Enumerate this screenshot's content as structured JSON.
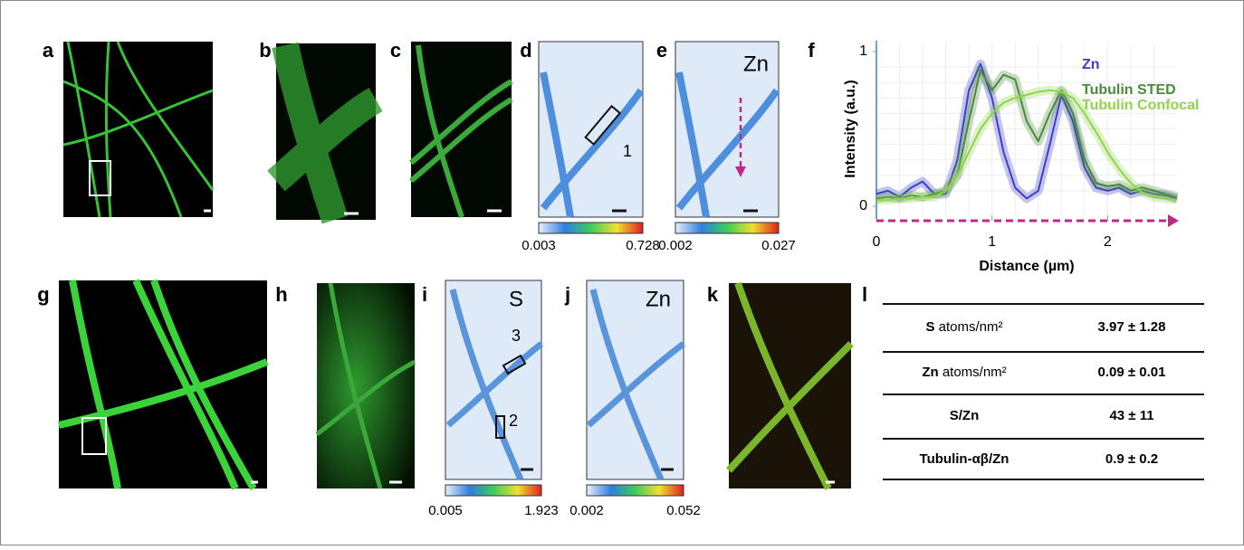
{
  "panel_labels": [
    "a",
    "b",
    "c",
    "d",
    "e",
    "f",
    "g",
    "h",
    "i",
    "j",
    "k",
    "l"
  ],
  "panel_d": {
    "region": "1",
    "colorbar": {
      "min": "0.003",
      "max": "0.728"
    }
  },
  "panel_e": {
    "element": "Zn",
    "colorbar": {
      "min": "0.002",
      "max": "0.027"
    }
  },
  "panel_i": {
    "element": "S",
    "regions": [
      "3",
      "2"
    ],
    "colorbar": {
      "min": "0.005",
      "max": "1.923"
    }
  },
  "panel_j": {
    "element": "Zn",
    "colorbar": {
      "min": "0.002",
      "max": "0.052"
    }
  },
  "chart_data": {
    "type": "line",
    "xlabel": "Distance (µm)",
    "ylabel": "Intensity (a.u.)",
    "x": [
      0,
      0.1,
      0.2,
      0.3,
      0.4,
      0.5,
      0.6,
      0.7,
      0.8,
      0.9,
      1.0,
      1.1,
      1.2,
      1.3,
      1.4,
      1.5,
      1.6,
      1.7,
      1.8,
      1.9,
      2.0,
      2.1,
      2.2,
      2.3,
      2.4,
      2.5,
      2.6
    ],
    "series": [
      {
        "name": "Zn",
        "color": "#3b3fc8",
        "values": [
          0.08,
          0.1,
          0.06,
          0.12,
          0.16,
          0.08,
          0.08,
          0.3,
          0.75,
          0.92,
          0.7,
          0.35,
          0.12,
          0.05,
          0.1,
          0.4,
          0.72,
          0.55,
          0.25,
          0.12,
          0.1,
          0.12,
          0.08,
          0.1,
          0.08,
          0.07,
          0.05
        ]
      },
      {
        "name": "Tubulin STED",
        "color": "#4a8a3a",
        "values": [
          0.05,
          0.06,
          0.05,
          0.07,
          0.06,
          0.08,
          0.1,
          0.2,
          0.55,
          0.88,
          0.75,
          0.85,
          0.82,
          0.55,
          0.42,
          0.6,
          0.75,
          0.6,
          0.3,
          0.15,
          0.13,
          0.14,
          0.1,
          0.12,
          0.1,
          0.08,
          0.06
        ]
      },
      {
        "name": "Tubulin Confocal",
        "color": "#8fd44a",
        "values": [
          0.04,
          0.04,
          0.05,
          0.05,
          0.06,
          0.06,
          0.1,
          0.2,
          0.35,
          0.5,
          0.6,
          0.67,
          0.7,
          0.72,
          0.74,
          0.75,
          0.74,
          0.7,
          0.6,
          0.48,
          0.35,
          0.24,
          0.15,
          0.09,
          0.06,
          0.05,
          0.04
        ]
      }
    ],
    "xlim": [
      0,
      2.6
    ],
    "ylim": [
      0,
      1
    ],
    "xticks": [
      0,
      1,
      2
    ],
    "yticks": [
      0,
      1
    ],
    "grid": true
  },
  "table": {
    "rows": [
      {
        "label": "S",
        "unit": "atoms/nm²",
        "value": "3.97 ± 1.28"
      },
      {
        "label": "Zn",
        "unit": "atoms/nm²",
        "value": "0.09 ± 0.01"
      },
      {
        "label": "S/Zn",
        "value": "43 ± 11"
      },
      {
        "label": "Tubulin-αβ/Zn",
        "value": "0.9 ± 0.2"
      }
    ]
  }
}
